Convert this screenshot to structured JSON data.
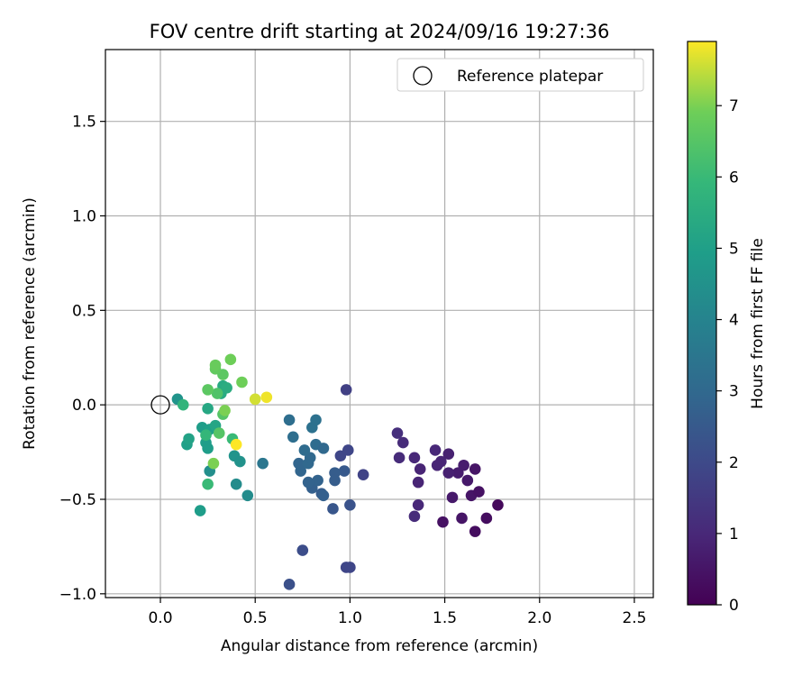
{
  "chart_data": {
    "type": "scatter",
    "title": "FOV centre drift starting at 2024/09/16 19:27:36",
    "xlabel": "Angular distance from reference (arcmin)",
    "ylabel": "Rotation from reference (arcmin)",
    "xlim": [
      -0.29,
      2.6
    ],
    "ylim": [
      -1.02,
      1.88
    ],
    "xticks": [
      0.0,
      0.5,
      1.0,
      1.5,
      2.0,
      2.5
    ],
    "xtick_labels": [
      "0.0",
      "0.5",
      "1.0",
      "1.5",
      "2.0",
      "2.5"
    ],
    "yticks": [
      -1.0,
      -0.5,
      0.0,
      0.5,
      1.0,
      1.5
    ],
    "ytick_labels": [
      "−1.0",
      "−0.5",
      "0.0",
      "0.5",
      "1.0",
      "1.5"
    ],
    "grid": true,
    "legend": {
      "position": "upper right",
      "entries": [
        "Reference platepar"
      ]
    },
    "reference_point": {
      "x": 0.0,
      "y": 0.0,
      "label": "Reference platepar"
    },
    "colorbar": {
      "label": "Hours from first FF file",
      "colormap": "viridis",
      "range": [
        0,
        7.9
      ],
      "ticks": [
        0,
        1,
        2,
        3,
        4,
        5,
        6,
        7
      ],
      "tick_labels": [
        "0",
        "1",
        "2",
        "3",
        "4",
        "5",
        "6",
        "7"
      ]
    },
    "points": [
      {
        "x": 1.66,
        "y": -0.67,
        "c": 0.3
      },
      {
        "x": 1.49,
        "y": -0.62,
        "c": 0.4
      },
      {
        "x": 1.59,
        "y": -0.6,
        "c": 0.5
      },
      {
        "x": 1.72,
        "y": -0.6,
        "c": 0.3
      },
      {
        "x": 1.78,
        "y": -0.53,
        "c": 0.2
      },
      {
        "x": 1.54,
        "y": -0.49,
        "c": 0.6
      },
      {
        "x": 1.64,
        "y": -0.48,
        "c": 0.5
      },
      {
        "x": 1.68,
        "y": -0.46,
        "c": 0.4
      },
      {
        "x": 1.62,
        "y": -0.4,
        "c": 0.6
      },
      {
        "x": 1.57,
        "y": -0.36,
        "c": 0.7
      },
      {
        "x": 1.52,
        "y": -0.36,
        "c": 0.8
      },
      {
        "x": 1.66,
        "y": -0.34,
        "c": 0.5
      },
      {
        "x": 1.6,
        "y": -0.32,
        "c": 0.7
      },
      {
        "x": 1.48,
        "y": -0.3,
        "c": 0.9
      },
      {
        "x": 1.46,
        "y": -0.32,
        "c": 0.9
      },
      {
        "x": 1.52,
        "y": -0.26,
        "c": 0.8
      },
      {
        "x": 1.45,
        "y": -0.24,
        "c": 1.0
      },
      {
        "x": 1.34,
        "y": -0.59,
        "c": 1.1
      },
      {
        "x": 1.36,
        "y": -0.53,
        "c": 1.0
      },
      {
        "x": 1.36,
        "y": -0.41,
        "c": 0.9
      },
      {
        "x": 1.37,
        "y": -0.34,
        "c": 0.9
      },
      {
        "x": 1.34,
        "y": -0.28,
        "c": 1.0
      },
      {
        "x": 1.26,
        "y": -0.28,
        "c": 1.1
      },
      {
        "x": 1.28,
        "y": -0.2,
        "c": 1.1
      },
      {
        "x": 1.25,
        "y": -0.15,
        "c": 1.2
      },
      {
        "x": 0.98,
        "y": 0.08,
        "c": 1.7
      },
      {
        "x": 1.07,
        "y": -0.37,
        "c": 1.8
      },
      {
        "x": 0.95,
        "y": -0.27,
        "c": 1.9
      },
      {
        "x": 0.99,
        "y": -0.24,
        "c": 1.9
      },
      {
        "x": 0.98,
        "y": -0.86,
        "c": 1.9
      },
      {
        "x": 1.0,
        "y": -0.86,
        "c": 1.9
      },
      {
        "x": 0.75,
        "y": -0.77,
        "c": 2.1
      },
      {
        "x": 0.68,
        "y": -0.95,
        "c": 2.2
      },
      {
        "x": 0.91,
        "y": -0.55,
        "c": 2.4
      },
      {
        "x": 1.0,
        "y": -0.53,
        "c": 2.3
      },
      {
        "x": 0.97,
        "y": -0.35,
        "c": 2.5
      },
      {
        "x": 0.92,
        "y": -0.36,
        "c": 2.6
      },
      {
        "x": 0.92,
        "y": -0.4,
        "c": 2.6
      },
      {
        "x": 0.85,
        "y": -0.47,
        "c": 2.6
      },
      {
        "x": 0.86,
        "y": -0.48,
        "c": 2.7
      },
      {
        "x": 0.8,
        "y": -0.44,
        "c": 2.7
      },
      {
        "x": 0.83,
        "y": -0.4,
        "c": 2.8
      },
      {
        "x": 0.78,
        "y": -0.41,
        "c": 2.8
      },
      {
        "x": 0.74,
        "y": -0.35,
        "c": 2.9
      },
      {
        "x": 0.73,
        "y": -0.31,
        "c": 2.9
      },
      {
        "x": 0.78,
        "y": -0.31,
        "c": 3.0
      },
      {
        "x": 0.79,
        "y": -0.28,
        "c": 3.0
      },
      {
        "x": 0.76,
        "y": -0.24,
        "c": 3.1
      },
      {
        "x": 0.82,
        "y": -0.21,
        "c": 3.1
      },
      {
        "x": 0.86,
        "y": -0.23,
        "c": 3.0
      },
      {
        "x": 0.68,
        "y": -0.08,
        "c": 3.2
      },
      {
        "x": 0.7,
        "y": -0.17,
        "c": 3.2
      },
      {
        "x": 0.8,
        "y": -0.12,
        "c": 3.3
      },
      {
        "x": 0.82,
        "y": -0.08,
        "c": 3.3
      },
      {
        "x": 0.54,
        "y": -0.31,
        "c": 3.5
      },
      {
        "x": 0.46,
        "y": -0.48,
        "c": 4.3
      },
      {
        "x": 0.4,
        "y": -0.42,
        "c": 4.3
      },
      {
        "x": 0.26,
        "y": -0.35,
        "c": 4.4
      },
      {
        "x": 0.39,
        "y": -0.27,
        "c": 4.6
      },
      {
        "x": 0.42,
        "y": -0.3,
        "c": 4.5
      },
      {
        "x": 0.21,
        "y": -0.56,
        "c": 4.9
      },
      {
        "x": 0.09,
        "y": 0.03,
        "c": 4.6
      },
      {
        "x": 0.25,
        "y": -0.23,
        "c": 4.9
      },
      {
        "x": 0.24,
        "y": -0.2,
        "c": 4.9
      },
      {
        "x": 0.22,
        "y": -0.12,
        "c": 4.9
      },
      {
        "x": 0.14,
        "y": -0.21,
        "c": 5.0
      },
      {
        "x": 0.15,
        "y": -0.18,
        "c": 5.1
      },
      {
        "x": 0.26,
        "y": -0.13,
        "c": 5.0
      },
      {
        "x": 0.29,
        "y": -0.11,
        "c": 5.2
      },
      {
        "x": 0.25,
        "y": -0.02,
        "c": 5.3
      },
      {
        "x": 0.32,
        "y": 0.06,
        "c": 5.4
      },
      {
        "x": 0.33,
        "y": 0.1,
        "c": 5.4
      },
      {
        "x": 0.35,
        "y": 0.09,
        "c": 5.5
      },
      {
        "x": 0.12,
        "y": 0.0,
        "c": 5.8
      },
      {
        "x": 0.24,
        "y": -0.16,
        "c": 5.9
      },
      {
        "x": 0.38,
        "y": -0.18,
        "c": 6.0
      },
      {
        "x": 0.25,
        "y": -0.42,
        "c": 6.0
      },
      {
        "x": 0.31,
        "y": -0.15,
        "c": 6.5
      },
      {
        "x": 0.33,
        "y": -0.05,
        "c": 6.5
      },
      {
        "x": 0.3,
        "y": 0.06,
        "c": 6.4
      },
      {
        "x": 0.25,
        "y": 0.08,
        "c": 6.6
      },
      {
        "x": 0.33,
        "y": 0.16,
        "c": 6.6
      },
      {
        "x": 0.29,
        "y": 0.19,
        "c": 6.7
      },
      {
        "x": 0.29,
        "y": 0.21,
        "c": 6.8
      },
      {
        "x": 0.37,
        "y": 0.24,
        "c": 6.9
      },
      {
        "x": 0.43,
        "y": 0.12,
        "c": 6.9
      },
      {
        "x": 0.34,
        "y": -0.03,
        "c": 7.0
      },
      {
        "x": 0.28,
        "y": -0.31,
        "c": 7.0
      },
      {
        "x": 0.5,
        "y": 0.03,
        "c": 7.6
      },
      {
        "x": 0.56,
        "y": 0.04,
        "c": 7.8
      },
      {
        "x": 0.4,
        "y": -0.21,
        "c": 7.9
      }
    ]
  }
}
